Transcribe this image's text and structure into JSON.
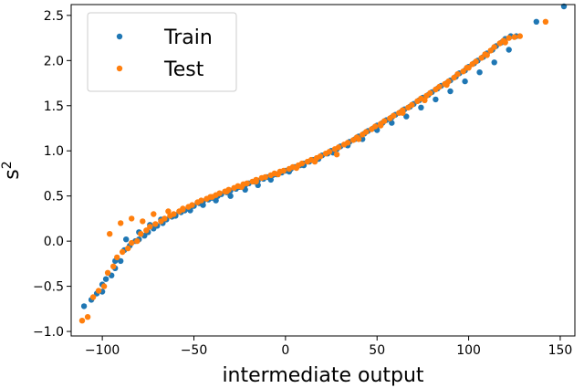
{
  "chart_data": {
    "type": "scatter",
    "xlabel": "intermediate output",
    "ylabel": "s",
    "ylabel_superscript": "2",
    "xlim": [
      -117,
      158
    ],
    "ylim": [
      -1.05,
      2.62
    ],
    "xticks": [
      -100,
      -50,
      0,
      50,
      100,
      150
    ],
    "xtick_labels": [
      "−100",
      "−50",
      "0",
      "50",
      "100",
      "150"
    ],
    "yticks": [
      -1.0,
      -0.5,
      0.0,
      0.5,
      1.0,
      1.5,
      2.0,
      2.5
    ],
    "ytick_labels": [
      "−1.0",
      "−0.5",
      "0.0",
      "0.5",
      "1.0",
      "1.5",
      "2.0",
      "2.5"
    ],
    "grid": false,
    "legend_position": "top-left",
    "series": [
      {
        "name": "Train",
        "color": "#1f77b4",
        "x": [
          -110,
          -106,
          -103,
          -100,
          -98,
          -95,
          -93,
          -90,
          -88,
          -85,
          -82,
          -80,
          -77,
          -75,
          -72,
          -70,
          -67,
          -65,
          -62,
          -60,
          -57,
          -55,
          -52,
          -50,
          -47,
          -45,
          -42,
          -40,
          -37,
          -35,
          -32,
          -30,
          -27,
          -25,
          -22,
          -20,
          -17,
          -15,
          -12,
          -10,
          -7,
          -5,
          -2,
          0,
          3,
          5,
          8,
          10,
          13,
          15,
          18,
          20,
          23,
          25,
          28,
          30,
          33,
          35,
          38,
          40,
          43,
          45,
          48,
          50,
          53,
          55,
          58,
          60,
          63,
          65,
          68,
          70,
          73,
          75,
          78,
          80,
          83,
          85,
          88,
          90,
          93,
          95,
          98,
          100,
          103,
          105,
          108,
          110,
          113,
          115,
          118,
          120,
          123,
          126,
          137,
          152,
          -100,
          -93,
          -87,
          -80,
          -74,
          -68,
          -60,
          -52,
          -45,
          -38,
          -30,
          -22,
          -15,
          -8,
          2,
          10,
          18,
          26,
          34,
          42,
          50,
          58,
          66,
          74,
          82,
          90,
          98,
          106,
          114,
          122
        ],
        "y": [
          -0.72,
          -0.65,
          -0.58,
          -0.48,
          -0.42,
          -0.38,
          -0.3,
          -0.22,
          -0.1,
          -0.05,
          0.0,
          0.02,
          0.06,
          0.1,
          0.14,
          0.17,
          0.2,
          0.24,
          0.27,
          0.29,
          0.32,
          0.34,
          0.37,
          0.39,
          0.42,
          0.44,
          0.46,
          0.48,
          0.5,
          0.52,
          0.54,
          0.56,
          0.58,
          0.6,
          0.62,
          0.64,
          0.66,
          0.67,
          0.69,
          0.71,
          0.73,
          0.74,
          0.76,
          0.78,
          0.8,
          0.82,
          0.84,
          0.86,
          0.88,
          0.9,
          0.92,
          0.95,
          0.97,
          1.0,
          1.02,
          1.05,
          1.07,
          1.1,
          1.13,
          1.16,
          1.19,
          1.22,
          1.25,
          1.28,
          1.31,
          1.34,
          1.37,
          1.4,
          1.43,
          1.46,
          1.49,
          1.52,
          1.56,
          1.59,
          1.62,
          1.65,
          1.69,
          1.72,
          1.75,
          1.78,
          1.82,
          1.86,
          1.89,
          1.93,
          1.97,
          2.0,
          2.04,
          2.08,
          2.12,
          2.16,
          2.2,
          2.24,
          2.27,
          2.27,
          2.43,
          2.6,
          -0.56,
          -0.22,
          0.02,
          0.1,
          0.18,
          0.24,
          0.28,
          0.34,
          0.4,
          0.45,
          0.5,
          0.57,
          0.62,
          0.68,
          0.77,
          0.84,
          0.91,
          0.98,
          1.06,
          1.13,
          1.23,
          1.31,
          1.38,
          1.48,
          1.57,
          1.66,
          1.77,
          1.87,
          1.98,
          2.12
        ]
      },
      {
        "name": "Test",
        "color": "#ff7f0e",
        "x": [
          -111,
          -108,
          -105,
          -102,
          -99,
          -97,
          -94,
          -92,
          -89,
          -86,
          -84,
          -81,
          -79,
          -76,
          -74,
          -71,
          -68,
          -66,
          -63,
          -61,
          -58,
          -56,
          -53,
          -51,
          -48,
          -46,
          -43,
          -41,
          -38,
          -36,
          -33,
          -31,
          -28,
          -26,
          -23,
          -21,
          -18,
          -16,
          -13,
          -11,
          -8,
          -6,
          -3,
          -1,
          2,
          4,
          7,
          9,
          12,
          14,
          17,
          19,
          22,
          24,
          27,
          29,
          32,
          34,
          37,
          39,
          42,
          44,
          47,
          49,
          52,
          54,
          57,
          59,
          62,
          64,
          67,
          69,
          72,
          74,
          77,
          79,
          82,
          84,
          87,
          89,
          92,
          94,
          97,
          99,
          102,
          104,
          107,
          109,
          112,
          114,
          117,
          119,
          122,
          125,
          128,
          142,
          -96,
          -90,
          -84,
          -78,
          -72,
          -64,
          -56,
          -48,
          -40,
          -32,
          -24,
          -16,
          -4,
          6,
          16,
          28,
          40,
          52,
          64,
          76,
          88,
          100,
          110,
          120
        ],
        "y": [
          -0.88,
          -0.84,
          -0.62,
          -0.55,
          -0.5,
          -0.35,
          -0.28,
          -0.18,
          -0.12,
          -0.08,
          -0.02,
          0.0,
          0.08,
          0.12,
          0.16,
          0.19,
          0.22,
          0.25,
          0.28,
          0.3,
          0.33,
          0.35,
          0.38,
          0.4,
          0.43,
          0.45,
          0.47,
          0.49,
          0.51,
          0.53,
          0.55,
          0.57,
          0.59,
          0.61,
          0.63,
          0.64,
          0.66,
          0.68,
          0.7,
          0.71,
          0.73,
          0.75,
          0.77,
          0.78,
          0.8,
          0.82,
          0.84,
          0.86,
          0.88,
          0.9,
          0.92,
          0.94,
          0.97,
          0.99,
          1.02,
          1.04,
          1.07,
          1.09,
          1.12,
          1.15,
          1.18,
          1.21,
          1.24,
          1.27,
          1.3,
          1.33,
          1.36,
          1.39,
          1.42,
          1.45,
          1.48,
          1.51,
          1.55,
          1.58,
          1.61,
          1.64,
          1.68,
          1.71,
          1.74,
          1.77,
          1.81,
          1.85,
          1.88,
          1.92,
          1.96,
          1.99,
          2.03,
          2.07,
          2.11,
          2.15,
          2.19,
          2.22,
          2.25,
          2.26,
          2.27,
          2.43,
          0.08,
          0.2,
          0.25,
          0.22,
          0.3,
          0.33,
          0.36,
          0.43,
          0.49,
          0.55,
          0.6,
          0.66,
          0.74,
          0.81,
          0.88,
          0.96,
          1.13,
          1.28,
          1.42,
          1.56,
          1.73,
          1.92,
          2.06,
          2.2
        ]
      }
    ]
  }
}
